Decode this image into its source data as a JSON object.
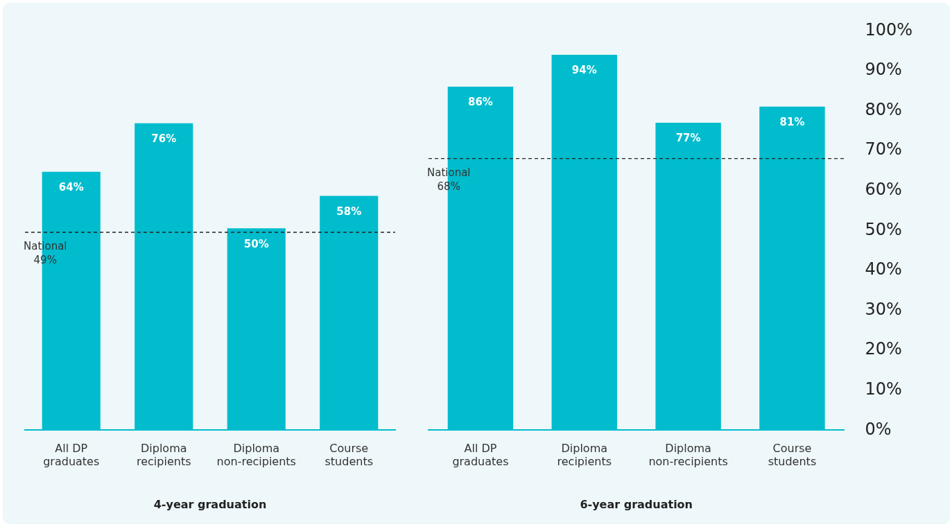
{
  "chart_data": [
    {
      "type": "bar",
      "xlabel": "4-year graduation",
      "categories": [
        "All DP graduates",
        "Diploma recipients",
        "Diploma non-recipients",
        "Course students"
      ],
      "values": [
        64,
        76,
        50,
        58
      ],
      "value_labels": [
        "64%",
        "76%",
        "50%",
        "58%"
      ],
      "color": "#00bccd",
      "ylim": [
        0,
        100
      ],
      "tick_labels": "x",
      "grid": false,
      "legend": false,
      "ref_lines": [
        {
          "axis": "y",
          "value": 49,
          "label": "National 49%",
          "line_style": "dashed",
          "color": "#222222"
        }
      ]
    },
    {
      "type": "bar",
      "xlabel": "6-year graduation",
      "categories": [
        "All DP graduates",
        "Diploma recipients",
        "Diploma non-recipients",
        "Course students"
      ],
      "values": [
        86,
        94,
        77,
        81
      ],
      "value_labels": [
        "86%",
        "94%",
        "77%",
        "81%"
      ],
      "color": "#00bccd",
      "ylim": [
        0,
        100
      ],
      "grid": false,
      "legend": false,
      "yticks": [
        {
          "value": 0,
          "label": "0%"
        },
        {
          "value": 10,
          "label": "10%"
        },
        {
          "value": 20,
          "label": "20%"
        },
        {
          "value": 30,
          "label": "30%"
        },
        {
          "value": 40,
          "label": "40%"
        },
        {
          "value": 50,
          "label": "50%"
        },
        {
          "value": 60,
          "label": "60%"
        },
        {
          "value": 70,
          "label": "70%"
        },
        {
          "value": 80,
          "label": "80%"
        },
        {
          "value": 90,
          "label": "90%"
        },
        {
          "value": 100,
          "label": "100%"
        }
      ],
      "ref_lines": [
        {
          "axis": "y",
          "value": 68,
          "label": "National 68%",
          "line_style": "dashed",
          "color": "#222222"
        }
      ]
    }
  ]
}
